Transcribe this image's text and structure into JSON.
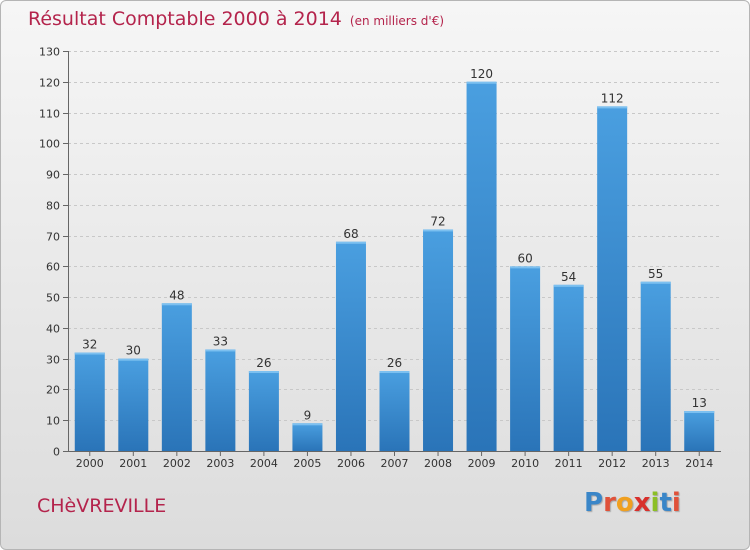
{
  "title": "Résultat Comptable 2000 à 2014",
  "subtitle": "(en milliers d'€)",
  "commune": "CHèVREVILLE",
  "logo": {
    "letters": [
      "P",
      "r",
      "o",
      "x",
      "i",
      "t",
      "i"
    ],
    "colors": [
      "#3a86c8",
      "#e0523a",
      "#f0a020",
      "#d8302c",
      "#8cbf26",
      "#3a86c8",
      "#e0523a"
    ]
  },
  "colors": {
    "bar": "#4a9fe0",
    "bar_dark": "#2a74b8",
    "title": "#b4244c"
  },
  "chart_data": {
    "type": "bar",
    "title": "Résultat Comptable 2000 à 2014",
    "ylabel": "",
    "xlabel": "",
    "categories": [
      "2000",
      "2001",
      "2002",
      "2003",
      "2004",
      "2005",
      "2006",
      "2007",
      "2008",
      "2009",
      "2010",
      "2011",
      "2012",
      "2013",
      "2014"
    ],
    "values": [
      32,
      30,
      48,
      33,
      26,
      9,
      68,
      26,
      72,
      120,
      60,
      54,
      112,
      55,
      13
    ],
    "ylim": [
      0,
      130
    ],
    "yticks": [
      0,
      10,
      20,
      30,
      40,
      50,
      60,
      70,
      80,
      90,
      100,
      110,
      120,
      130
    ],
    "grid": true
  }
}
